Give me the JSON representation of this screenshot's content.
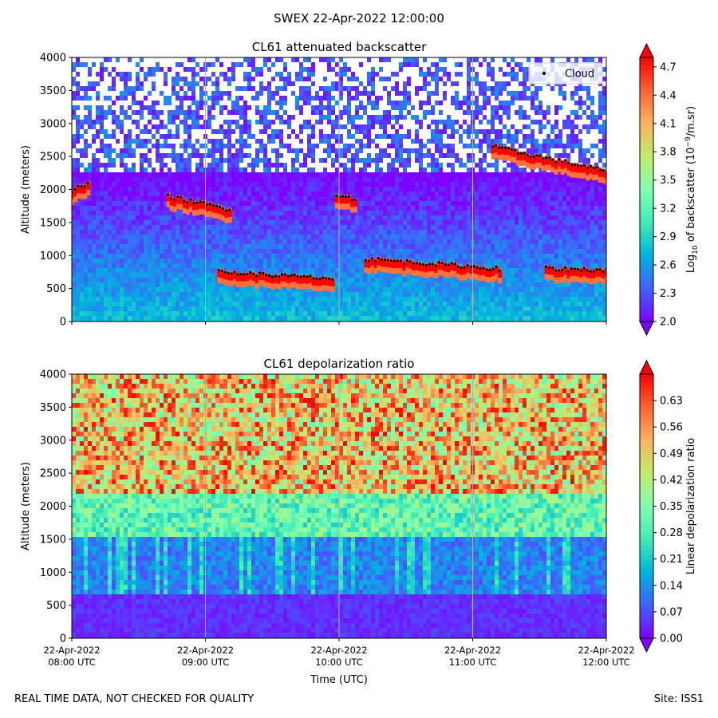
{
  "figure": {
    "suptitle": "SWEX 22-Apr-2022 12:00:00",
    "footer_left": "REAL TIME DATA, NOT CHECKED FOR QUALITY",
    "footer_right": "Site: ISS1"
  },
  "chart_data": [
    {
      "type": "heatmap",
      "title": "CL61 attenuated backscatter",
      "xlabel": "",
      "ylabel": "Altitude (meters)",
      "ylim": [
        0,
        4000
      ],
      "yticks": [
        0,
        500,
        1000,
        1500,
        2000,
        2500,
        3000,
        3500,
        4000
      ],
      "xlim_hours_utc": [
        8,
        12
      ],
      "xticks_hours_utc": [
        8,
        9,
        10,
        11,
        12
      ],
      "xtick_labels": [],
      "colorbar": {
        "label": "Log10 of backscatter (10^-9/m.sr)",
        "label_parts": {
          "pre": "Log",
          "sub": "10",
          "mid": " of backscatter (10",
          "sup": "−9",
          "post": "/m.sr)"
        },
        "min": 2.0,
        "max": 4.8,
        "ticks": [
          2.0,
          2.3,
          2.6,
          2.9,
          3.2,
          3.5,
          3.8,
          4.1,
          4.4,
          4.7
        ],
        "tick_labels": [
          "2.0",
          "2.3",
          "2.6",
          "2.9",
          "3.2",
          "3.5",
          "3.8",
          "4.1",
          "4.4",
          "4.7"
        ],
        "extend": "both"
      },
      "legend": {
        "entries": [
          "Cloud"
        ],
        "location": "upper right"
      },
      "cloud_layers": [
        {
          "name": "layer 08:00 near 2000 m",
          "x_hours": [
            8.0,
            8.12
          ],
          "y_m": [
            1990,
            2080
          ]
        },
        {
          "name": "layer 08:45-09:10 near 1800 m",
          "x_hours": [
            8.72,
            9.18
          ],
          "y_m": [
            1900,
            1700
          ]
        },
        {
          "name": "layer 10:00 near 1900 m",
          "x_hours": [
            9.98,
            10.12
          ],
          "y_m": [
            1930,
            1850
          ]
        },
        {
          "name": "layer 10:10-11:15 near 800-1000 m",
          "x_hours": [
            10.2,
            11.2
          ],
          "y_m": [
            950,
            800
          ]
        },
        {
          "name": "layer 09:05-09:55 near 700 m",
          "x_hours": [
            9.1,
            9.95
          ],
          "y_m": [
            750,
            650
          ]
        },
        {
          "name": "layer 11:10-12:00 near 2300-2600 m",
          "x_hours": [
            11.15,
            12.0
          ],
          "y_m": [
            2650,
            2280
          ]
        },
        {
          "name": "layer 11:35-12:00 near 800 m",
          "x_hours": [
            11.55,
            12.0
          ],
          "y_m": [
            800,
            780
          ]
        }
      ]
    },
    {
      "type": "heatmap",
      "title": "CL61 depolarization ratio",
      "xlabel": "Time (UTC)",
      "ylabel": "Altitude (meters)",
      "ylim": [
        0,
        4000
      ],
      "yticks": [
        0,
        500,
        1000,
        1500,
        2000,
        2500,
        3000,
        3500,
        4000
      ],
      "xlim_hours_utc": [
        8,
        12
      ],
      "xticks_hours_utc": [
        8,
        9,
        10,
        11,
        12
      ],
      "xtick_labels": [
        [
          "22-Apr-2022",
          "08:00 UTC"
        ],
        [
          "22-Apr-2022",
          "09:00 UTC"
        ],
        [
          "22-Apr-2022",
          "10:00 UTC"
        ],
        [
          "22-Apr-2022",
          "11:00 UTC"
        ],
        [
          "22-Apr-2022",
          "12:00 UTC"
        ]
      ],
      "colorbar": {
        "label": "Linear depolarization ratio",
        "min": 0.0,
        "max": 0.7,
        "ticks": [
          0.0,
          0.07,
          0.14,
          0.21,
          0.28,
          0.35,
          0.42,
          0.49,
          0.56,
          0.63
        ],
        "tick_labels": [
          "0.00",
          "0.07",
          "0.14",
          "0.21",
          "0.28",
          "0.35",
          "0.42",
          "0.49",
          "0.56",
          "0.63"
        ],
        "extend": "both"
      }
    }
  ],
  "colors": {
    "colormap": [
      "#7f00ff",
      "#4062fa",
      "#01b3df",
      "#40ecb4",
      "#80feb3",
      "#c1ec6a",
      "#ffb360",
      "#ff6331",
      "#ff0000"
    ],
    "cloud_marker": "#000000",
    "grid": "#b0b0b0"
  }
}
